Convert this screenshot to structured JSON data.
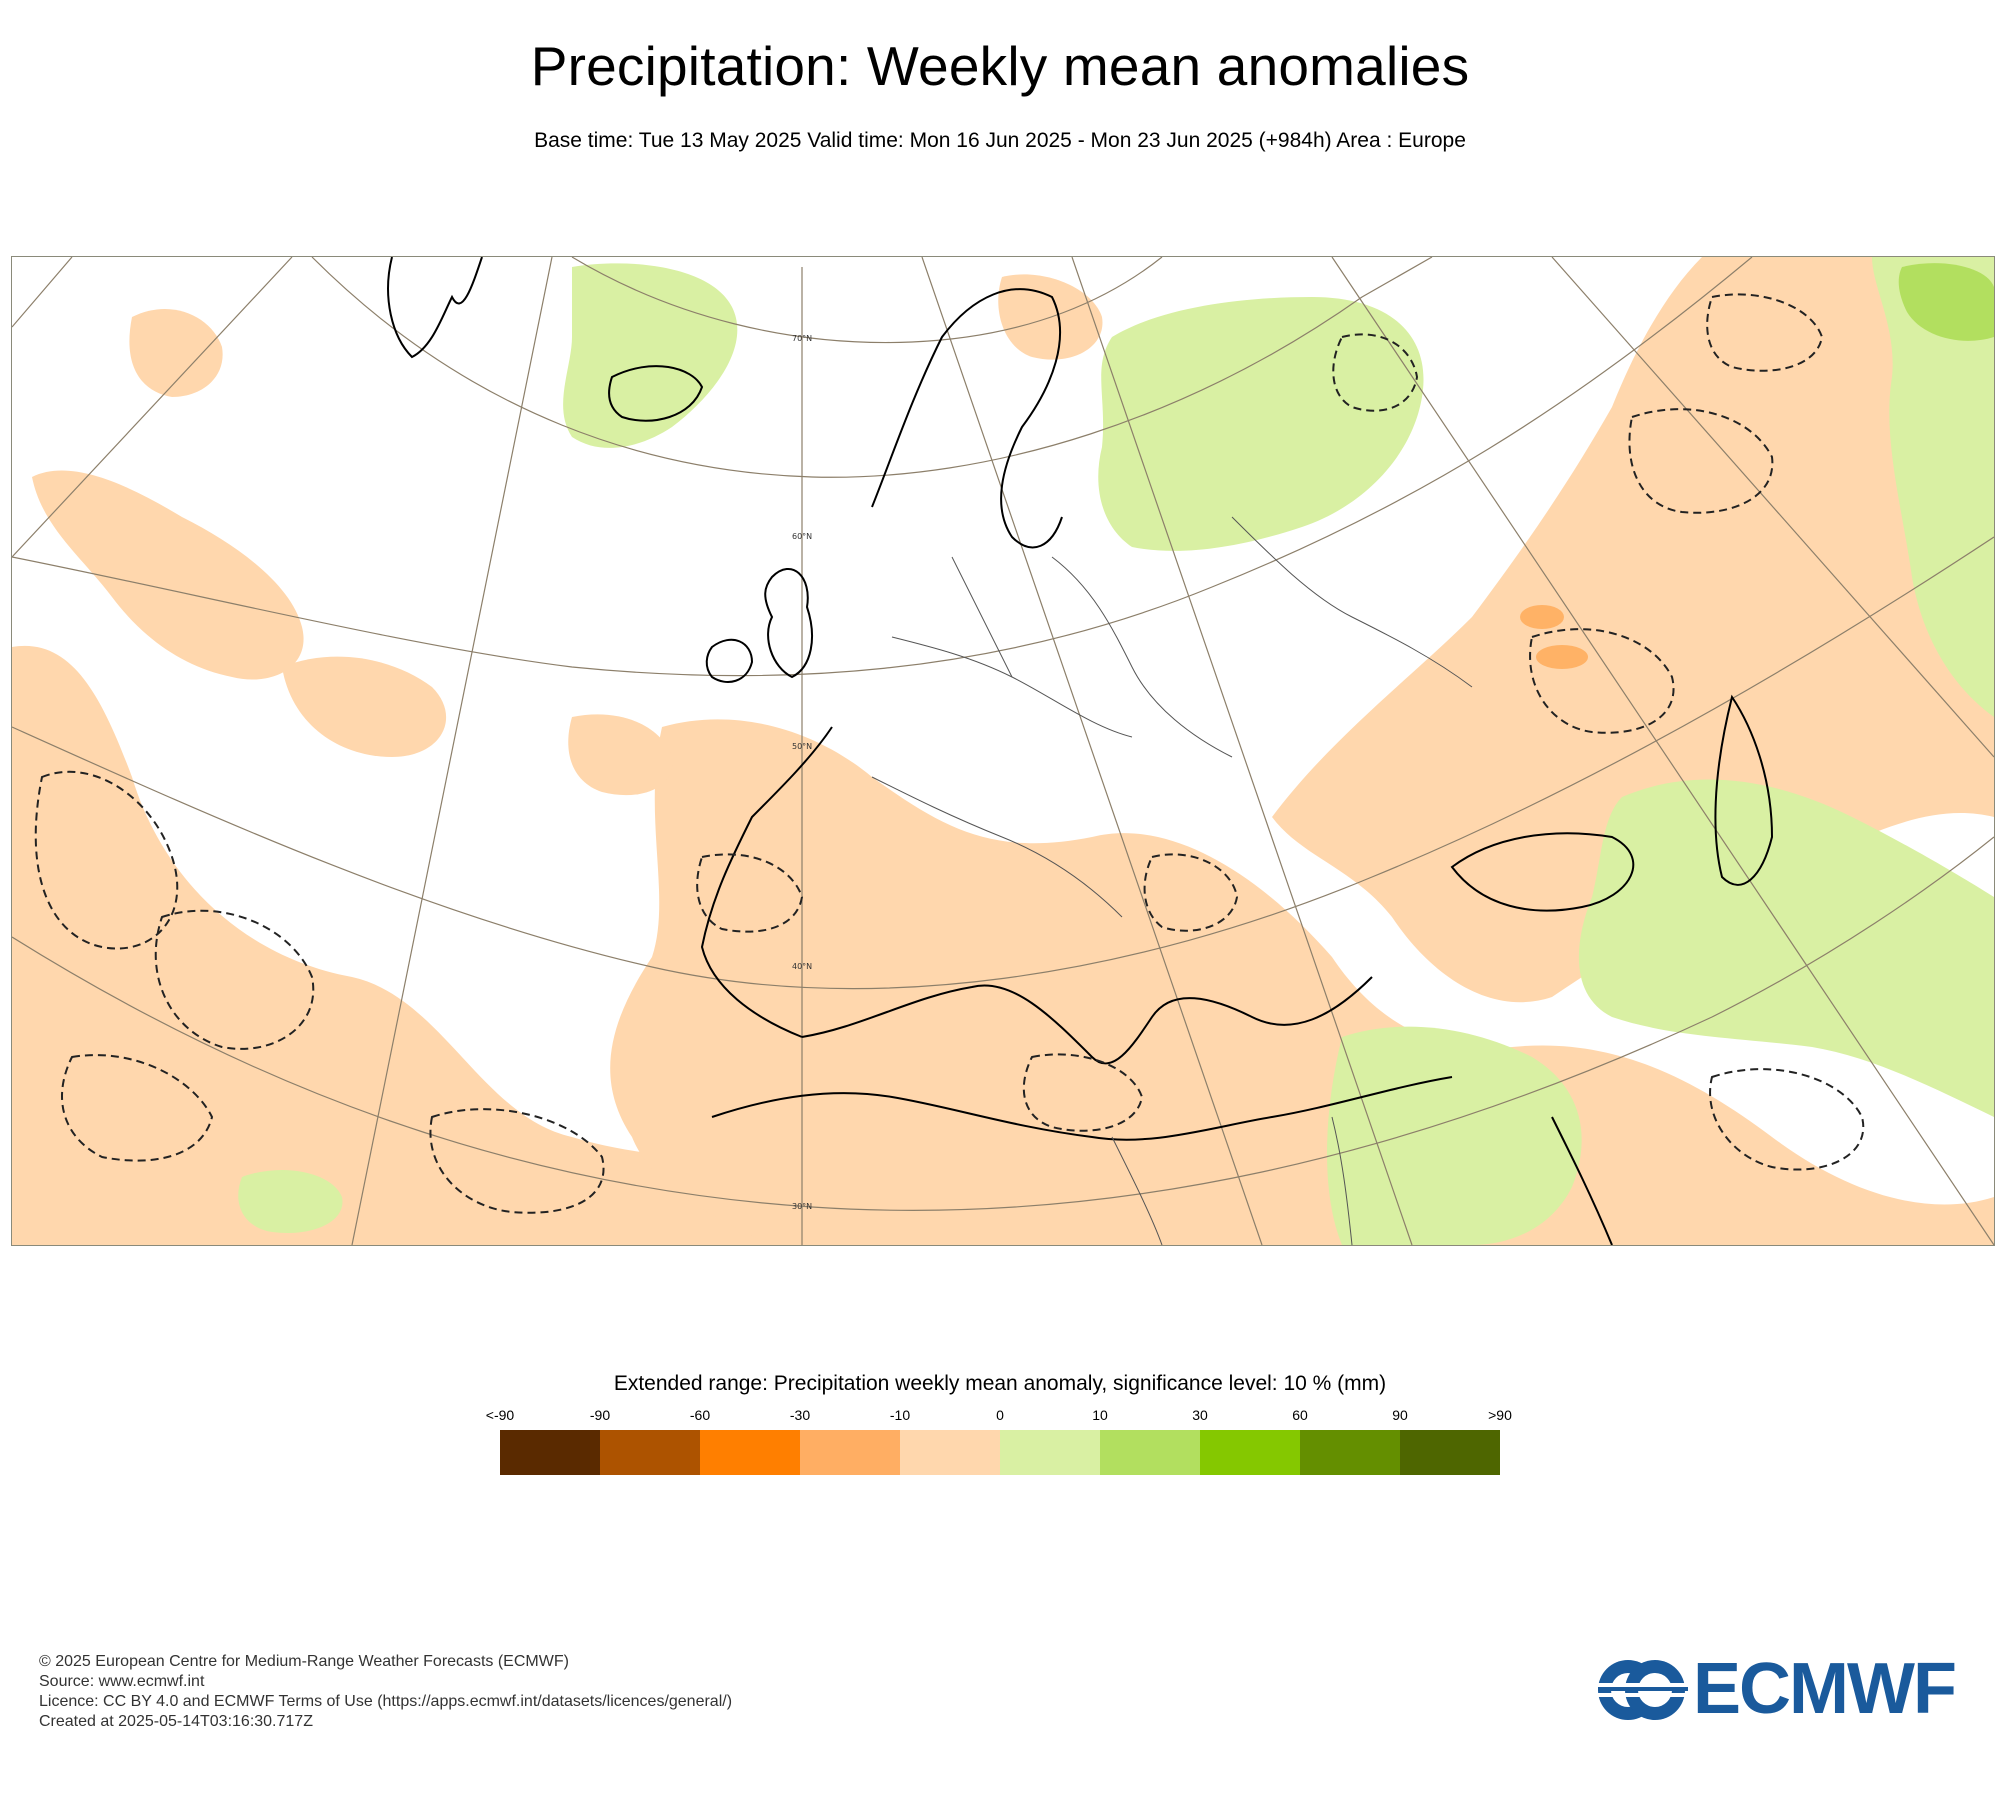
{
  "header": {
    "title": "Precipitation: Weekly mean anomalies",
    "subtitle": "Base time: Tue 13 May 2025 Valid time: Mon 16 Jun 2025 - Mon 23 Jun 2025 (+984h) Area : Europe"
  },
  "map": {
    "region": "Europe",
    "latitude_labels": [
      "70°N",
      "60°N",
      "50°N",
      "40°N",
      "30°N"
    ],
    "colors": {
      "below_light": "#ffd7ad",
      "below_mid": "#ffb266",
      "above_light": "#d9f0a3",
      "above_mid": "#b2df5f",
      "graticule": "#8c7f6a",
      "coastline": "#000000"
    }
  },
  "legend": {
    "title": "Extended range: Precipitation weekly mean anomaly, significance level: 10 % (mm)",
    "ticks": [
      "<-90",
      "-90",
      "-60",
      "-30",
      "-10",
      "0",
      "10",
      "30",
      "60",
      "90",
      ">90"
    ],
    "colors": [
      "#5a2a00",
      "#ad5300",
      "#ff7f00",
      "#ffae63",
      "#ffd7ad",
      "#d9f0a3",
      "#b2df5f",
      "#85c800",
      "#648f00",
      "#4e6600"
    ]
  },
  "footer": {
    "lines": [
      "© 2025 European Centre for Medium-Range Weather Forecasts (ECMWF)",
      "Source: www.ecmwf.int",
      "Licence: CC BY 4.0 and ECMWF Terms of Use (https://apps.ecmwf.int/datasets/licences/general/)",
      "Created at 2025-05-14T03:16:30.717Z"
    ]
  },
  "logo": {
    "text": "ECMWF",
    "color": "#1a5a9c"
  }
}
